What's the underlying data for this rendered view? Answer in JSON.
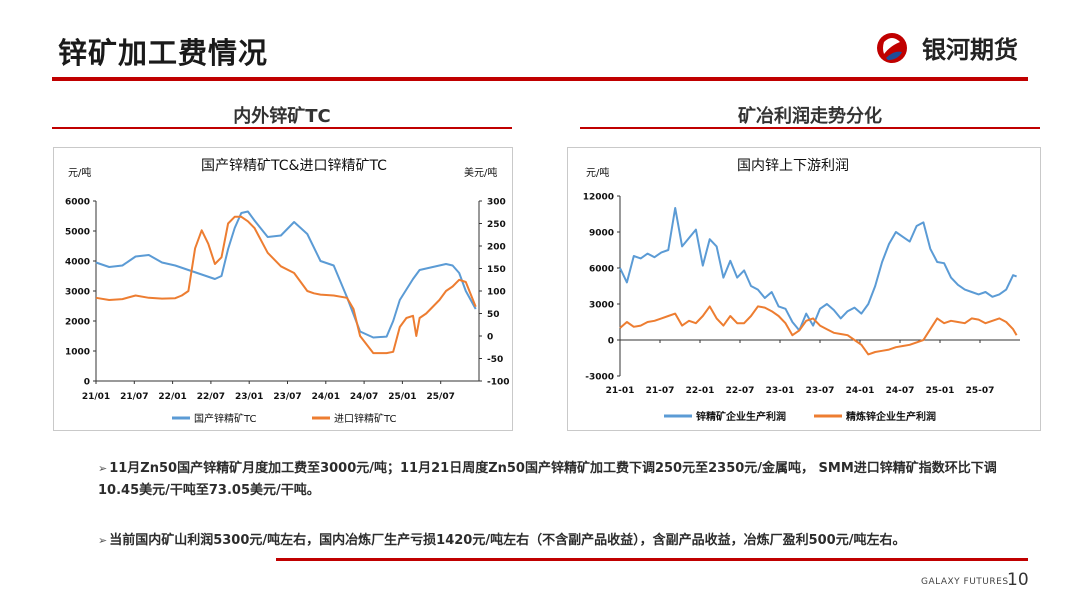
{
  "header": {
    "title": "锌矿加工费情况",
    "logo_text": "银河期货"
  },
  "sections": {
    "left_title": "内外锌矿TC",
    "right_title": "矿冶利润走势分化"
  },
  "colors": {
    "accent": "#c00000",
    "blue": "#5b9bd5",
    "orange": "#ed7d31"
  },
  "notes": [
    "11月Zn50国产锌精矿月度加工费至3000元/吨；11月21日周度Zn50国产锌精矿加工费下调250元至2350元/金属吨， SMM进口锌精矿指数环比下调10.45美元/干吨至73.05美元/干吨。",
    "当前国内矿山利润5300元/吨左右，国内冶炼厂生产亏损1420元/吨左右（不含副产品收益），含副产品收益，冶炼厂盈利500元/吨左右。"
  ],
  "footer": {
    "brand": "GALAXY FUTURES",
    "page": "10"
  },
  "chart_data": [
    {
      "type": "line",
      "title": "国产锌精矿TC&进口锌精矿TC",
      "ylabel": "元/吨",
      "y2label": "美元/吨",
      "ylim": [
        0,
        6000
      ],
      "y2lim": [
        -100,
        300
      ],
      "yticks": [
        "6000",
        "5000",
        "4000",
        "3000",
        "2000",
        "1000",
        "0"
      ],
      "y2ticks": [
        "300",
        "250",
        "200",
        "150",
        "100",
        "50",
        "0",
        "-50",
        "-100"
      ],
      "xticks": [
        "21/01",
        "21/07",
        "22/01",
        "22/07",
        "23/01",
        "23/07",
        "24/01",
        "24/07",
        "25/01",
        "25/07"
      ],
      "x_range": [
        0,
        58
      ],
      "series": [
        {
          "name": "国产锌精矿TC",
          "axis": "left",
          "x": [
            0,
            2,
            4,
            6,
            8,
            10,
            12,
            14,
            16,
            18,
            19,
            20,
            21,
            22,
            23,
            24,
            26,
            28,
            30,
            32,
            34,
            36,
            38,
            40,
            42,
            44,
            45,
            46,
            48,
            49,
            50,
            52,
            53,
            54,
            55,
            56,
            57.5
          ],
          "values": [
            3950,
            3800,
            3850,
            4150,
            4200,
            3950,
            3850,
            3700,
            3550,
            3400,
            3500,
            4400,
            5100,
            5600,
            5650,
            5350,
            4800,
            4850,
            5300,
            4900,
            4000,
            3850,
            2800,
            1650,
            1450,
            1480,
            2000,
            2700,
            3400,
            3700,
            3750,
            3850,
            3900,
            3850,
            3600,
            3000,
            2400
          ]
        },
        {
          "name": "进口锌精矿TC",
          "axis": "right",
          "x": [
            0,
            2,
            4,
            6,
            8,
            10,
            12,
            13,
            14,
            15,
            16,
            17,
            18,
            19,
            20,
            21,
            22,
            23,
            24,
            26,
            28,
            30,
            32,
            33,
            34,
            36,
            38,
            39,
            40,
            42,
            44,
            45,
            46,
            47,
            48,
            48.5,
            49,
            50,
            52,
            53,
            54,
            55,
            56,
            57.5
          ],
          "values": [
            85,
            80,
            82,
            90,
            85,
            83,
            84,
            90,
            100,
            195,
            235,
            205,
            160,
            175,
            250,
            265,
            265,
            255,
            240,
            185,
            155,
            140,
            100,
            95,
            92,
            90,
            85,
            60,
            0,
            -38,
            -38,
            -35,
            20,
            40,
            45,
            0,
            40,
            50,
            80,
            100,
            110,
            125,
            120,
            65
          ]
        }
      ],
      "legend": [
        "国产锌精矿TC",
        "进口锌精矿TC"
      ]
    },
    {
      "type": "line",
      "title": "国内锌上下游利润",
      "ylabel": "元/吨",
      "ylim": [
        -3000,
        12000
      ],
      "yticks": [
        "12000",
        "9000",
        "6000",
        "3000",
        "0",
        "-3000"
      ],
      "xticks": [
        "21-01",
        "21-07",
        "22-01",
        "22-07",
        "23-01",
        "23-07",
        "24-01",
        "24-07",
        "25-01",
        "25-07"
      ],
      "x_range": [
        0,
        58
      ],
      "series": [
        {
          "name": "锌精矿企业生产利润",
          "x": [
            0,
            1,
            2,
            3,
            4,
            5,
            6,
            7,
            8,
            9,
            10,
            11,
            12,
            13,
            14,
            15,
            16,
            17,
            18,
            19,
            20,
            21,
            22,
            23,
            24,
            25,
            26,
            27,
            28,
            29,
            30,
            31,
            32,
            33,
            34,
            35,
            36,
            37,
            38,
            39,
            40,
            41,
            42,
            43,
            44,
            45,
            46,
            47,
            48,
            49,
            50,
            51,
            52,
            53,
            54,
            55,
            56,
            57,
            57.5
          ],
          "values": [
            6000,
            4800,
            7000,
            6800,
            7200,
            6900,
            7300,
            7500,
            11000,
            7800,
            8500,
            9200,
            6200,
            8400,
            7800,
            5200,
            6600,
            5200,
            5800,
            4500,
            4200,
            3500,
            4000,
            2800,
            2600,
            1500,
            800,
            2200,
            1200,
            2600,
            3000,
            2500,
            1800,
            2400,
            2700,
            2200,
            3000,
            4500,
            6500,
            8000,
            9000,
            8600,
            8200,
            9500,
            9800,
            7600,
            6500,
            6400,
            5200,
            4600,
            4200,
            4000,
            3800,
            4000,
            3600,
            3800,
            4200,
            5400,
            5300
          ]
        },
        {
          "name": "精炼锌企业生产利润",
          "x": [
            0,
            1,
            2,
            3,
            4,
            5,
            6,
            7,
            8,
            9,
            10,
            11,
            12,
            13,
            14,
            15,
            16,
            17,
            18,
            19,
            20,
            21,
            22,
            23,
            24,
            25,
            26,
            27,
            28,
            29,
            30,
            31,
            32,
            33,
            34,
            35,
            36,
            37,
            38,
            39,
            40,
            41,
            42,
            43,
            44,
            45,
            46,
            47,
            48,
            49,
            50,
            51,
            52,
            53,
            54,
            55,
            56,
            57,
            57.5
          ],
          "values": [
            1000,
            1500,
            1100,
            1200,
            1500,
            1600,
            1800,
            2000,
            2200,
            1200,
            1600,
            1400,
            2000,
            2800,
            1800,
            1200,
            2000,
            1400,
            1400,
            2000,
            2800,
            2700,
            2400,
            2000,
            1400,
            400,
            800,
            1600,
            1800,
            1200,
            900,
            600,
            500,
            400,
            0,
            -400,
            -1200,
            -1000,
            -900,
            -800,
            -600,
            -500,
            -400,
            -200,
            0,
            900,
            1800,
            1400,
            1600,
            1500,
            1400,
            1800,
            1700,
            1400,
            1600,
            1800,
            1500,
            900,
            400
          ]
        }
      ],
      "legend": [
        "锌精矿企业生产利润",
        "精炼锌企业生产利润"
      ]
    }
  ]
}
